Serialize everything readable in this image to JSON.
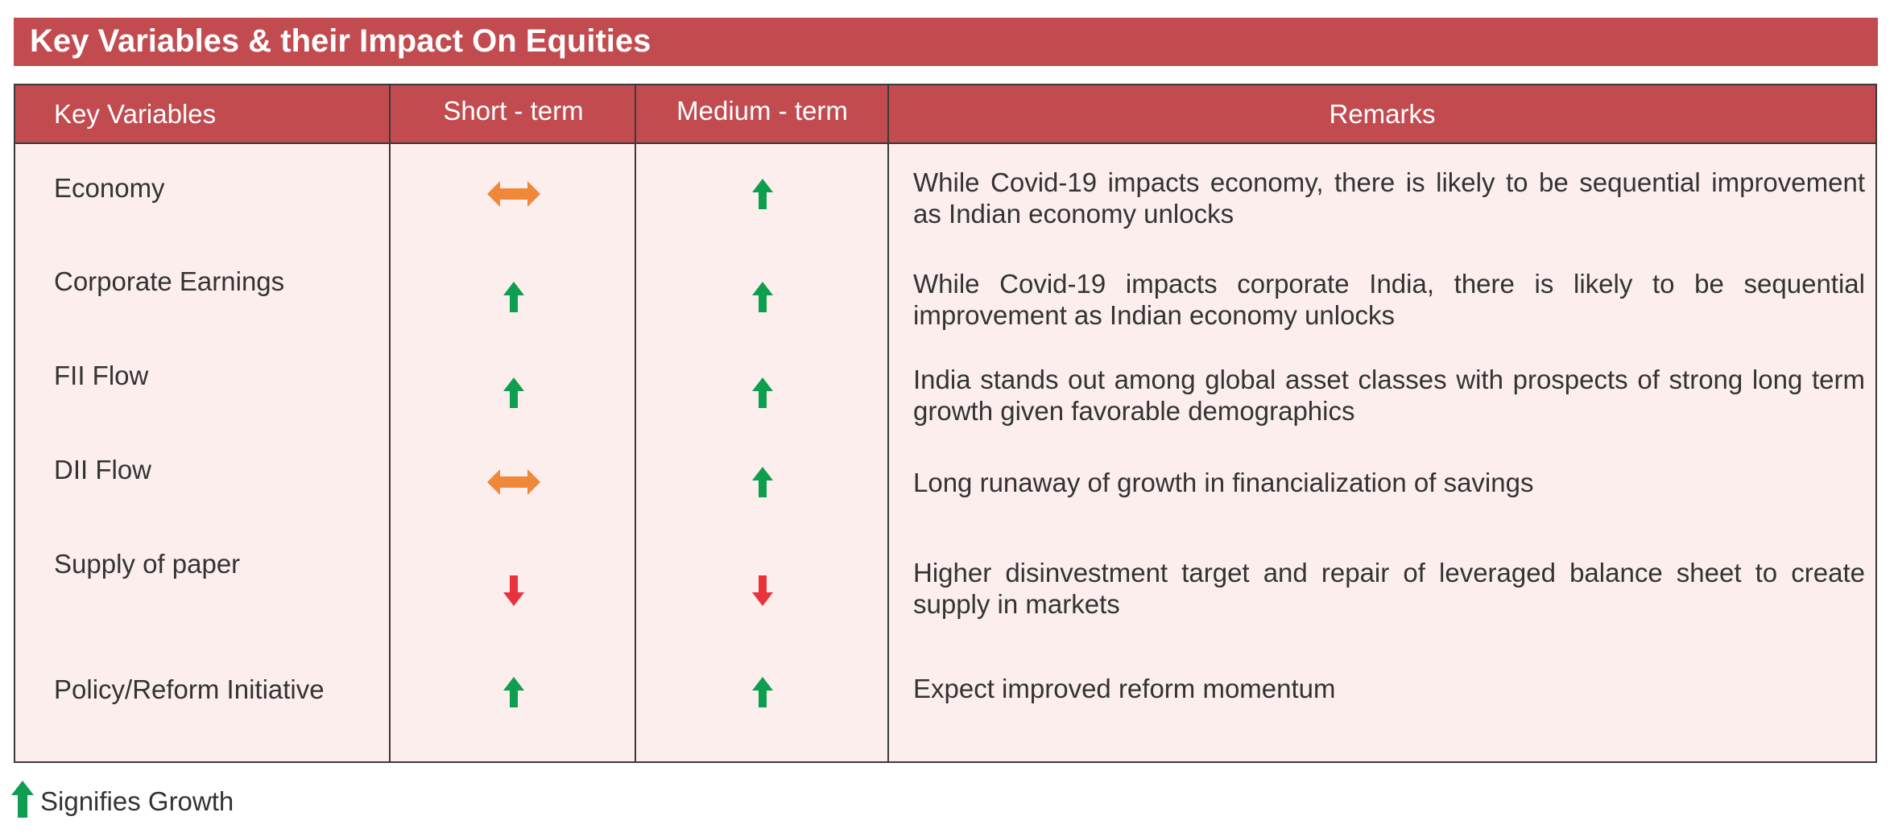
{
  "title": "Key Variables & their Impact On Equities",
  "columns": {
    "variables": "Key Variables",
    "short": "Short  - term",
    "medium": "Medium - term",
    "remarks": "Remarks"
  },
  "rows": [
    {
      "label": "Economy",
      "short": "neutral-arrow-icon",
      "medium": "up-arrow-icon",
      "remark": "While Covid-19 impacts economy, there is likely to be sequential improvement as Indian economy unlocks"
    },
    {
      "label": "Corporate Earnings",
      "short": "up-arrow-icon",
      "medium": "up-arrow-icon",
      "remark": "While Covid-19 impacts corporate India, there is likely to be sequential improvement as Indian economy unlocks"
    },
    {
      "label": "FII Flow",
      "short": "up-arrow-icon",
      "medium": "up-arrow-icon",
      "remark": "India stands out among global asset classes with prospects of strong long term growth given favorable demographics"
    },
    {
      "label": "DII Flow",
      "short": "neutral-arrow-icon",
      "medium": "up-arrow-icon",
      "remark": "Long runaway of growth in financialization of savings"
    },
    {
      "label": "Supply of paper",
      "short": "down-arrow-icon",
      "medium": "down-arrow-icon",
      "remark": "Higher disinvestment target and repair of leveraged balance sheet to create supply in markets"
    },
    {
      "label": "Policy/Reform Initiative",
      "short": "up-arrow-icon",
      "medium": "up-arrow-icon",
      "remark": "Expect improved reform momentum"
    }
  ],
  "legend": {
    "icon": "up-arrow-icon",
    "text": "Signifies Growth"
  },
  "colors": {
    "header": "#c24b50",
    "body": "#fdeeee",
    "growth": "#0e9e4f",
    "neutral": "#f0883a",
    "decline": "#e8323c"
  }
}
